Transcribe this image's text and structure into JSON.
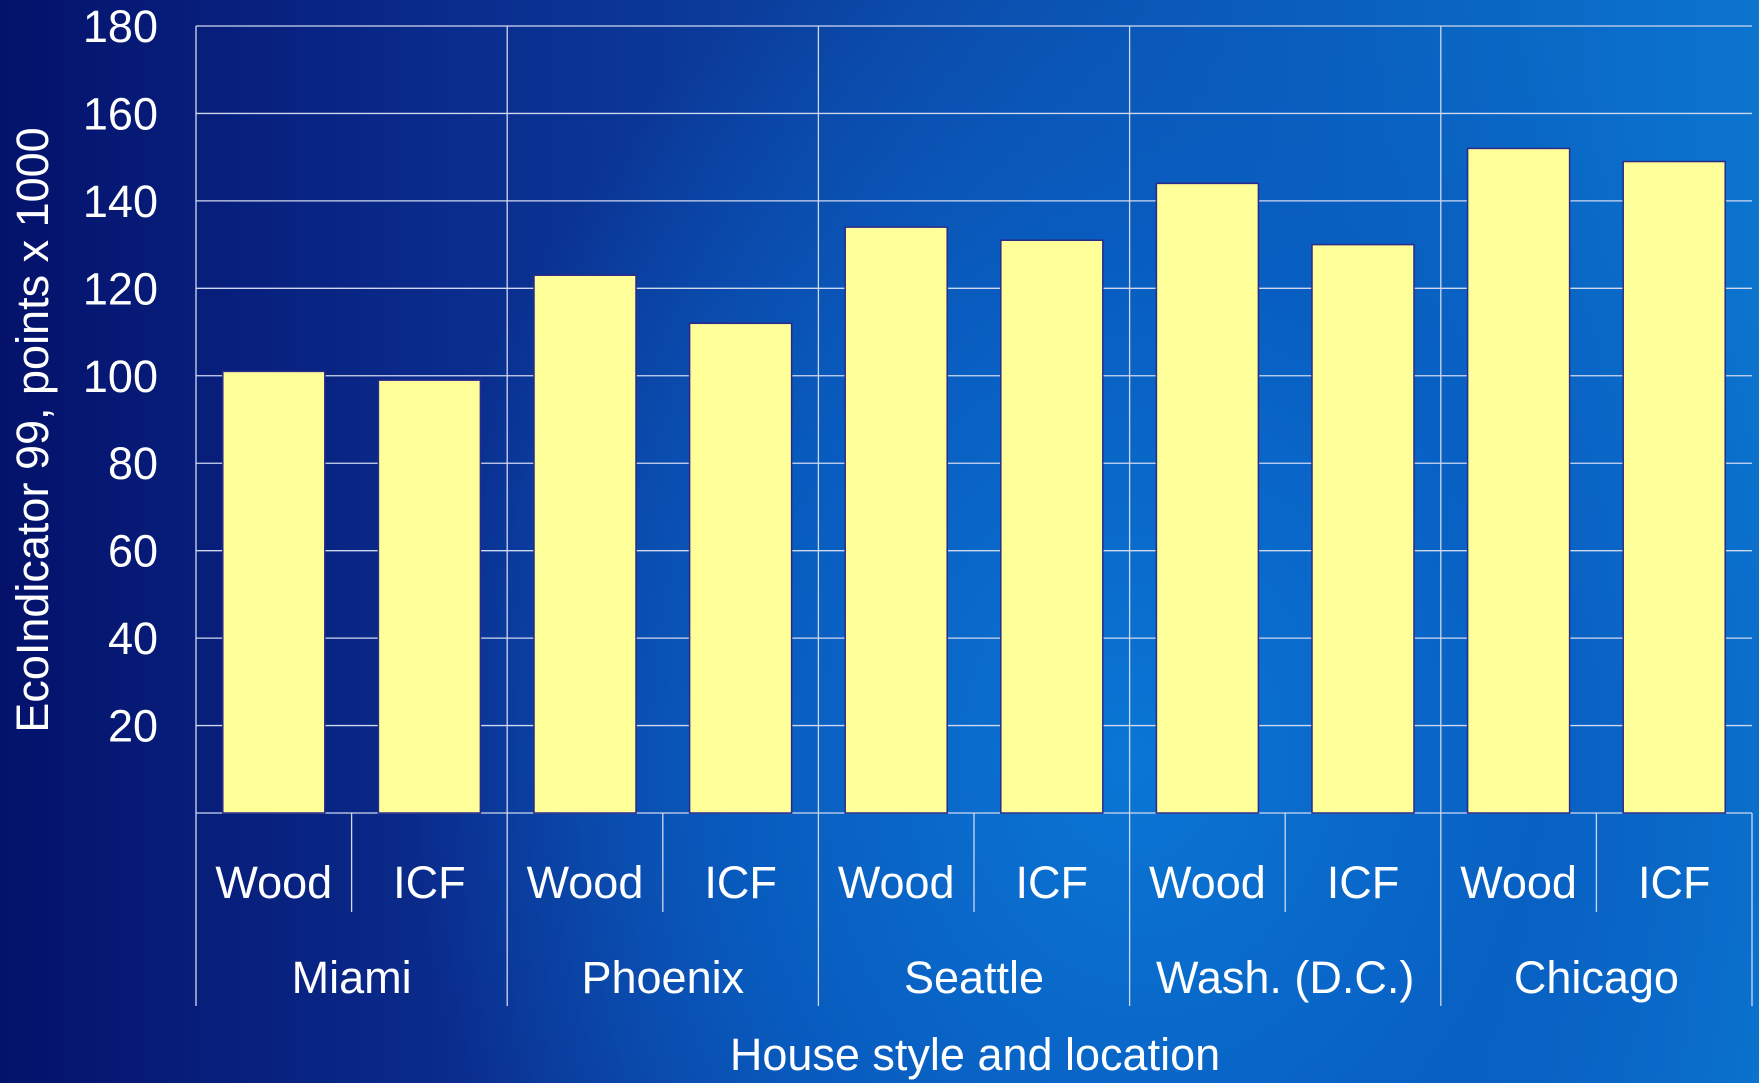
{
  "chart_data": {
    "type": "bar",
    "categories": [
      {
        "style": "Wood",
        "location": "Miami"
      },
      {
        "style": "ICF",
        "location": "Miami"
      },
      {
        "style": "Wood",
        "location": "Phoenix"
      },
      {
        "style": "ICF",
        "location": "Phoenix"
      },
      {
        "style": "Wood",
        "location": "Seattle"
      },
      {
        "style": "ICF",
        "location": "Seattle"
      },
      {
        "style": "Wood",
        "location": "Wash. (D.C.)"
      },
      {
        "style": "ICF",
        "location": "Wash. (D.C.)"
      },
      {
        "style": "Wood",
        "location": "Chicago"
      },
      {
        "style": "ICF",
        "location": "Chicago"
      }
    ],
    "locations": [
      "Miami",
      "Phoenix",
      "Seattle",
      "Wash. (D.C.)",
      "Chicago"
    ],
    "values": [
      101,
      99,
      123,
      112,
      134,
      131,
      144,
      130,
      152,
      149
    ],
    "yticks": [
      20,
      40,
      60,
      80,
      100,
      120,
      140,
      160,
      180
    ],
    "ylim": [
      0,
      180
    ],
    "xlabel": "House style and location",
    "ylabel": "EcoIndicator 99, points x 1000",
    "grid": true,
    "bar_color": "#ffff99",
    "bar_edge_color": "#2a2a8a",
    "grid_color": "#d0d8f0"
  }
}
